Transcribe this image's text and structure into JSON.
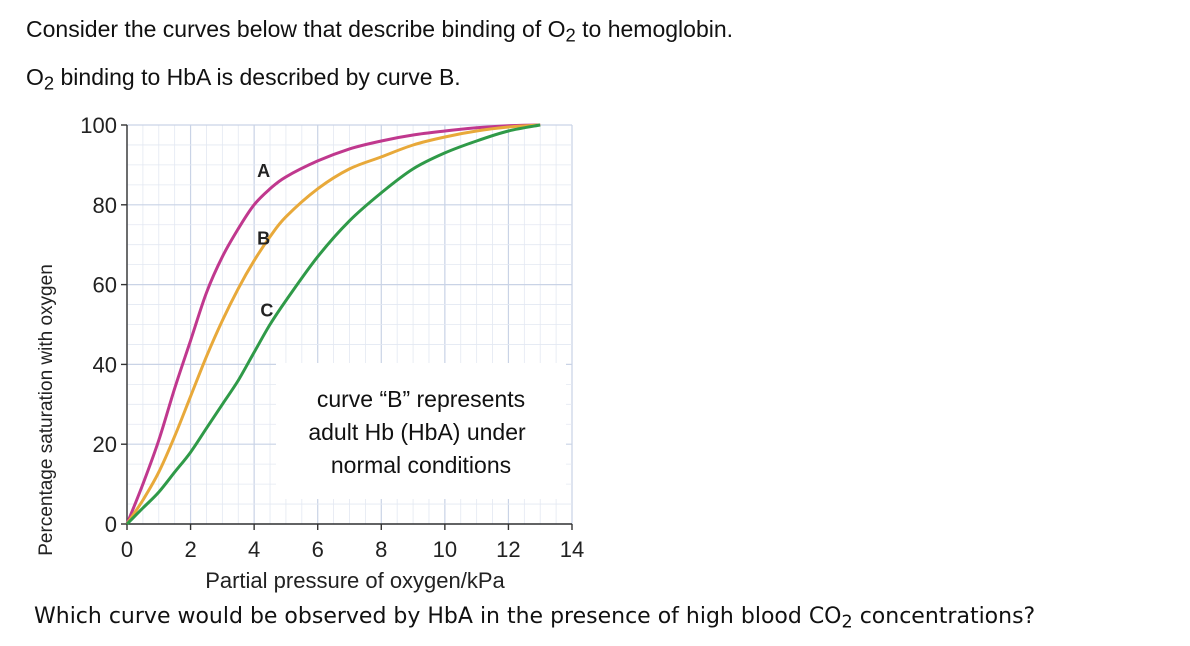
{
  "question": {
    "line1_pre": "Consider the curves below that describe binding of O",
    "line1_sub": "2",
    "line1_post": " to hemoglobin.",
    "line2_pre": "O",
    "line2_sub": "2",
    "line2_post": " binding to HbA is described by curve B.",
    "line3_pre": "Which curve would be observed by HbA in the presence of high blood CO",
    "line3_sub": "2",
    "line3_post": " concentrations?"
  },
  "annotation": {
    "line1": "curve “B” represents",
    "line2": "adult Hb (HbA) under",
    "line3": "normal conditions"
  },
  "chart_data": {
    "type": "line",
    "xlabel": "Partial pressure of oxygen/kPa",
    "ylabel": "Percentage saturation with oxygen",
    "xlim": [
      0,
      14
    ],
    "ylim": [
      0,
      100
    ],
    "xticks": [
      "0",
      "2",
      "4",
      "6",
      "8",
      "10",
      "12",
      "14"
    ],
    "yticks": [
      "0",
      "20",
      "40",
      "60",
      "80",
      "100"
    ],
    "grid": true,
    "series": [
      {
        "name": "A",
        "color": "#c0388e",
        "x": [
          0,
          0.5,
          1,
          1.5,
          2,
          2.5,
          3,
          3.5,
          4,
          4.5,
          5,
          6,
          7,
          8,
          9,
          10,
          11,
          12,
          13
        ],
        "y": [
          0,
          10,
          21,
          34,
          46,
          58,
          67,
          74,
          80,
          84,
          87,
          91,
          94,
          96,
          97.5,
          98.5,
          99.3,
          99.8,
          100
        ]
      },
      {
        "name": "B",
        "color": "#e8a93a",
        "x": [
          0,
          0.5,
          1,
          1.5,
          2,
          2.5,
          3,
          3.5,
          4,
          4.5,
          5,
          6,
          7,
          8,
          9,
          10,
          11,
          12,
          13
        ],
        "y": [
          0,
          6,
          13,
          22,
          32,
          42,
          51,
          59,
          66,
          72,
          77,
          84,
          89,
          92,
          95,
          97,
          98.5,
          99.5,
          100
        ]
      },
      {
        "name": "C",
        "color": "#2f9a48",
        "x": [
          0,
          0.5,
          1,
          1.5,
          2,
          2.5,
          3,
          3.5,
          4,
          4.5,
          5,
          6,
          7,
          8,
          9,
          10,
          11,
          12,
          13
        ],
        "y": [
          0,
          4,
          8,
          13,
          18,
          24,
          30,
          36,
          43,
          50,
          56,
          67,
          76,
          83,
          89,
          93,
          96,
          98.5,
          100
        ]
      }
    ]
  }
}
